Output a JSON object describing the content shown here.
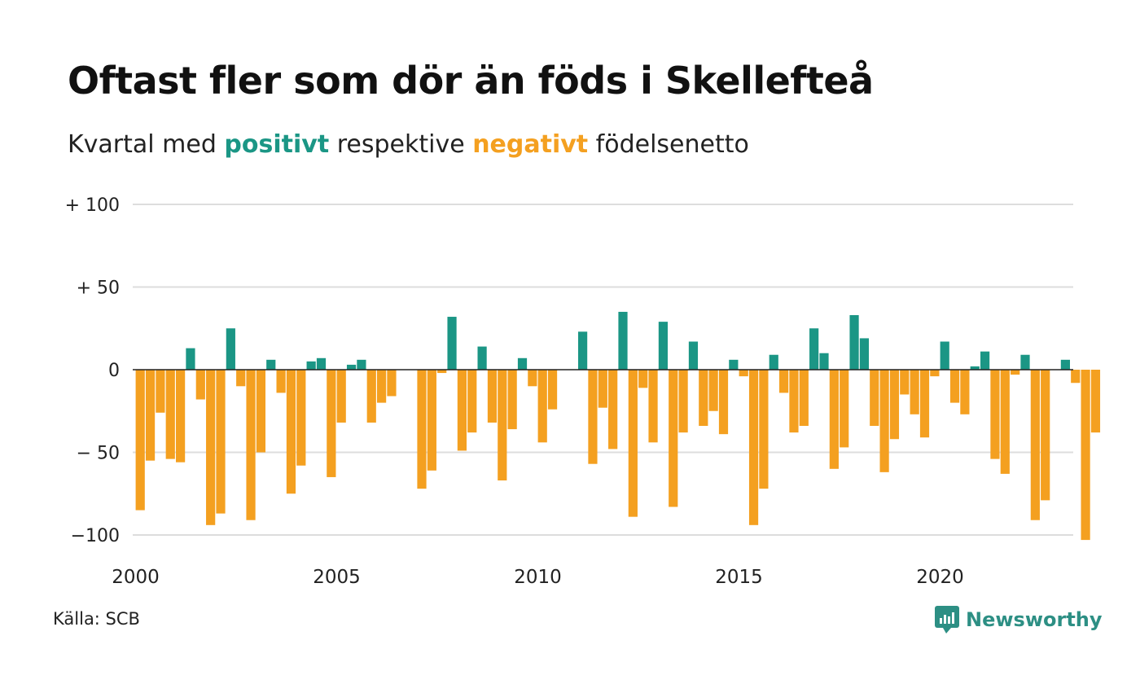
{
  "header": {
    "title": "Oftast fler som dör än föds i Skellefteå",
    "subtitle_prefix": "Kvartal med ",
    "subtitle_positive": "positivt",
    "subtitle_middle": " respektive ",
    "subtitle_negative": "negativt",
    "subtitle_suffix": " födelsenetto"
  },
  "footer": {
    "source": "Källa: SCB",
    "brand": "Newsworthy",
    "brand_icon": "newsworthy-logo-icon"
  },
  "colors": {
    "positive": "#1b9685",
    "negative": "#f4a020",
    "grid": "#dddddd",
    "zero_line": "#222222"
  },
  "chart_data": {
    "type": "bar",
    "title": "Oftast fler som dör än föds i Skellefteå",
    "subtitle": "Kvartal med positivt respektive negativt födelsenetto",
    "xlabel": "",
    "ylabel": "",
    "x_start": 2000,
    "x_end": 2023.75,
    "ylim": [
      -110,
      100
    ],
    "yticks": [
      {
        "value": 100,
        "label": "+ 100"
      },
      {
        "value": 50,
        "label": "+  50"
      },
      {
        "value": 0,
        "label": "0"
      },
      {
        "value": -50,
        "label": "− 50"
      },
      {
        "value": -100,
        "label": "−100"
      }
    ],
    "xticks": [
      {
        "value": 2000,
        "label": "2000"
      },
      {
        "value": 2005,
        "label": "2005"
      },
      {
        "value": 2010,
        "label": "2010"
      },
      {
        "value": 2015,
        "label": "2015"
      },
      {
        "value": 2020,
        "label": "2020"
      }
    ],
    "grid": true,
    "legend": "none",
    "series": [
      {
        "quarters": [
          "2000Q1",
          "2000Q2",
          "2000Q3",
          "2000Q4",
          "2001Q1",
          "2001Q2",
          "2001Q3",
          "2001Q4",
          "2002Q1",
          "2002Q2",
          "2002Q3",
          "2002Q4",
          "2003Q1",
          "2003Q2",
          "2003Q3",
          "2003Q4",
          "2004Q1",
          "2004Q2",
          "2004Q3",
          "2004Q4",
          "2005Q1",
          "2005Q2",
          "2005Q3",
          "2005Q4",
          "2006Q1",
          "2006Q2",
          "2006Q3",
          "2006Q4",
          "2007Q1",
          "2007Q2",
          "2007Q3",
          "2007Q4",
          "2008Q1",
          "2008Q2",
          "2008Q3",
          "2008Q4",
          "2009Q1",
          "2009Q2",
          "2009Q3",
          "2009Q4",
          "2010Q1",
          "2010Q2",
          "2010Q3",
          "2010Q4",
          "2011Q1",
          "2011Q2",
          "2011Q3",
          "2011Q4",
          "2012Q1",
          "2012Q2",
          "2012Q3",
          "2012Q4",
          "2013Q1",
          "2013Q2",
          "2013Q3",
          "2013Q4",
          "2014Q1",
          "2014Q2",
          "2014Q3",
          "2014Q4",
          "2015Q1",
          "2015Q2",
          "2015Q3",
          "2015Q4",
          "2016Q1",
          "2016Q2",
          "2016Q3",
          "2016Q4",
          "2017Q1",
          "2017Q2",
          "2017Q3",
          "2017Q4",
          "2018Q1",
          "2018Q2",
          "2018Q3",
          "2018Q4",
          "2019Q1",
          "2019Q2",
          "2019Q3",
          "2019Q4",
          "2020Q1",
          "2020Q2",
          "2020Q3",
          "2020Q4",
          "2021Q1",
          "2021Q2",
          "2021Q3",
          "2021Q4",
          "2022Q1",
          "2022Q2",
          "2022Q3",
          "2022Q4",
          "2023Q1",
          "2023Q2",
          "2023Q3",
          "2023Q4"
        ],
        "values": [
          -85,
          -55,
          -26,
          -54,
          -56,
          13,
          -18,
          -94,
          -87,
          25,
          -10,
          -91,
          -50,
          6,
          -14,
          -75,
          -58,
          5,
          7,
          -65,
          -32,
          3,
          6,
          -32,
          -20,
          -16,
          0,
          0,
          -72,
          -61,
          -2,
          32,
          -49,
          -38,
          14,
          -32,
          -67,
          -36,
          7,
          -10,
          -44,
          -24,
          0,
          0,
          23,
          -57,
          -23,
          -48,
          35,
          -89,
          -11,
          -44,
          29,
          -83,
          -38,
          17,
          -34,
          -25,
          -39,
          6,
          -4,
          -94,
          -72,
          9,
          -14,
          -38,
          -34,
          25,
          10,
          -60,
          -47,
          33,
          19,
          -34,
          -62,
          -42,
          -15,
          -27,
          -41,
          -4,
          17,
          -20,
          -27,
          2,
          11,
          -54,
          -63,
          -3,
          9,
          -91,
          -79,
          0,
          6,
          -8,
          -103,
          -38
        ]
      }
    ]
  }
}
